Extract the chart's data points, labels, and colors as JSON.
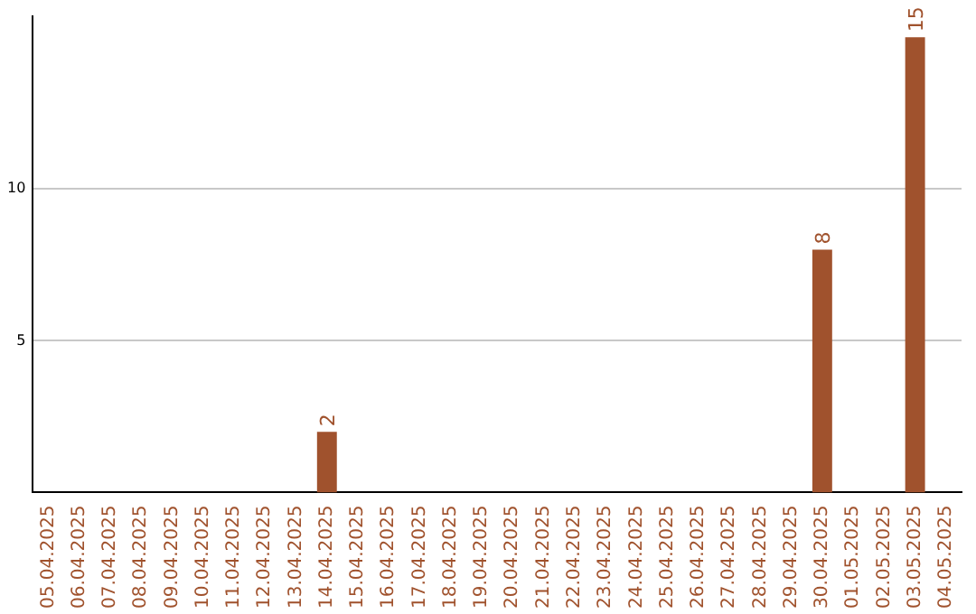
{
  "chart_data": {
    "type": "bar",
    "categories": [
      "05.04.2025",
      "06.04.2025",
      "07.04.2025",
      "08.04.2025",
      "09.04.2025",
      "10.04.2025",
      "11.04.2025",
      "12.04.2025",
      "13.04.2025",
      "14.04.2025",
      "15.04.2025",
      "16.04.2025",
      "17.04.2025",
      "18.04.2025",
      "19.04.2025",
      "20.04.2025",
      "21.04.2025",
      "22.04.2025",
      "23.04.2025",
      "24.04.2025",
      "25.04.2025",
      "26.04.2025",
      "27.04.2025",
      "28.04.2025",
      "29.04.2025",
      "30.04.2025",
      "01.05.2025",
      "02.05.2025",
      "03.05.2025",
      "04.05.2025"
    ],
    "values": [
      null,
      null,
      null,
      null,
      null,
      null,
      null,
      null,
      null,
      2,
      null,
      null,
      null,
      null,
      null,
      null,
      null,
      null,
      null,
      null,
      null,
      null,
      null,
      null,
      null,
      8,
      null,
      null,
      15,
      null
    ],
    "color": "#a0522d",
    "ylim": [
      0,
      15.7
    ],
    "yticks": [
      5,
      10
    ],
    "grid": "y",
    "legend": false,
    "data_labels": true
  }
}
